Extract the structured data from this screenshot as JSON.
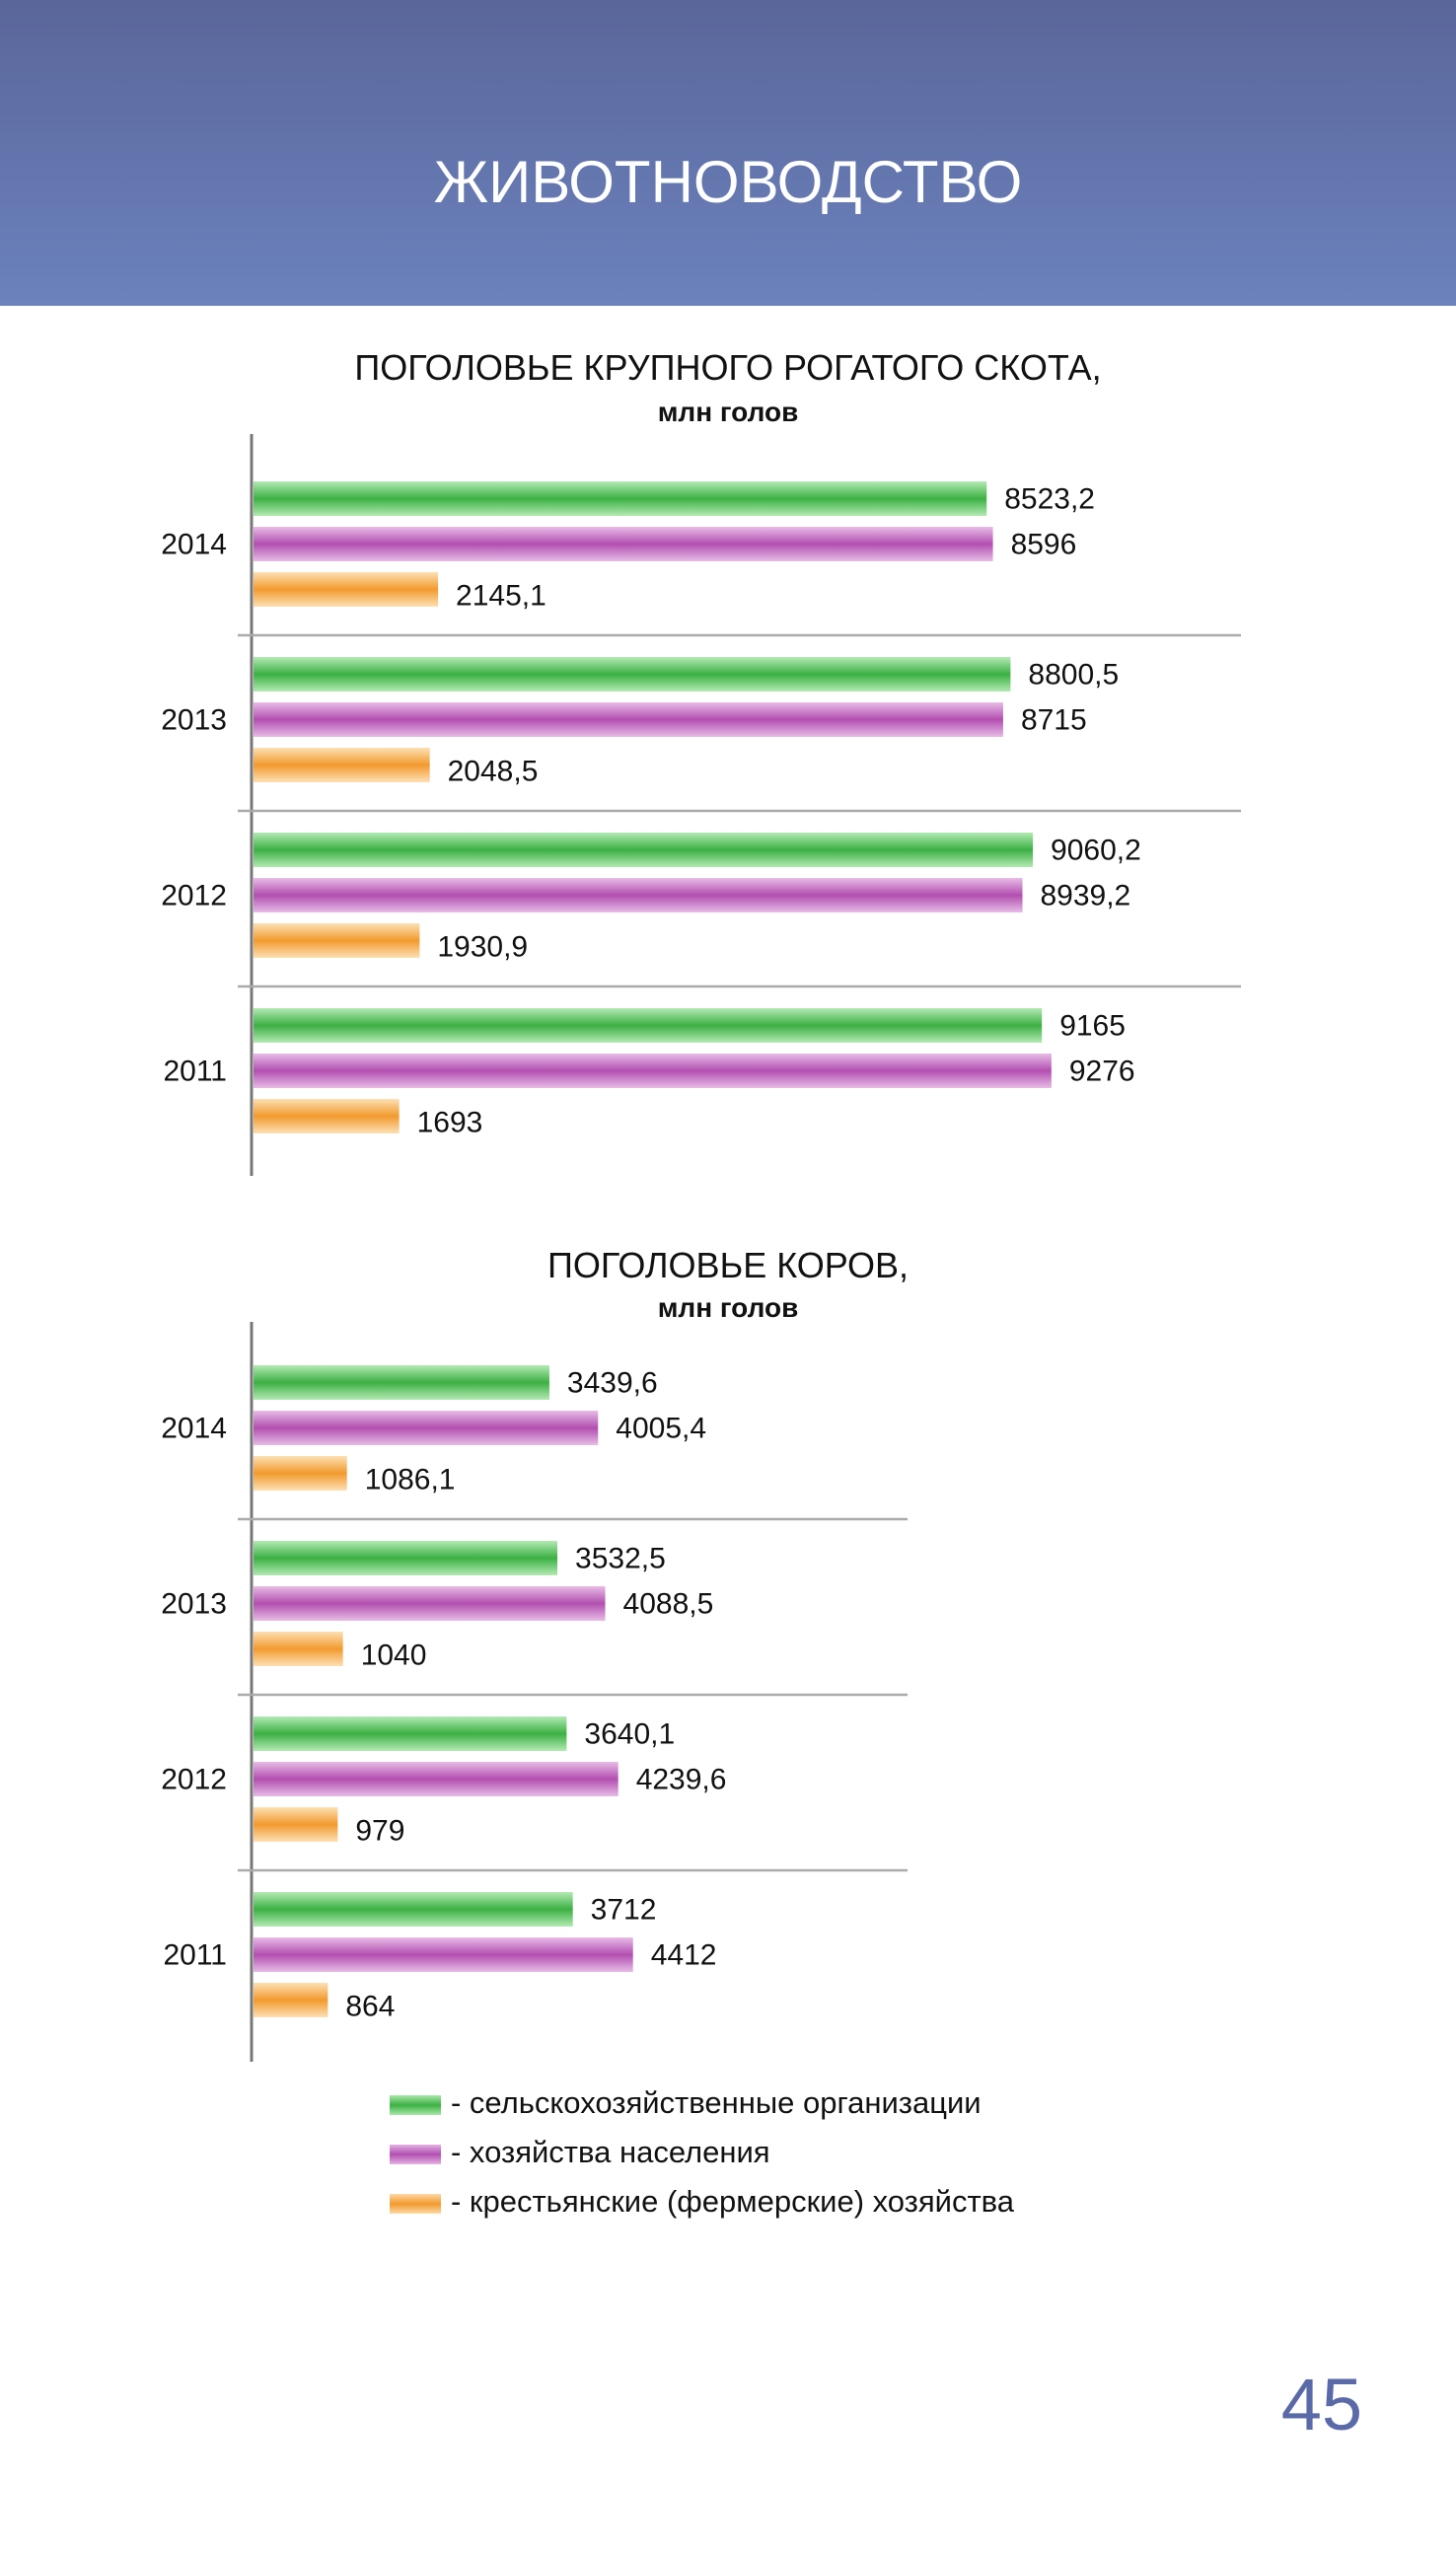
{
  "header": {
    "title": "ЖИВОТНОВОДСТВО"
  },
  "colors": {
    "agri_orgs": "#3cb043",
    "households": "#b24fb0",
    "farms": "#f29a2e"
  },
  "chart_data": [
    {
      "type": "bar",
      "orientation": "horizontal",
      "title": "ПОГОЛОВЬЕ КРУПНОГО РОГАТОГО СКОТА,",
      "subtitle": "млн голов",
      "categories": [
        "2014",
        "2013",
        "2012",
        "2011"
      ],
      "series": [
        {
          "name": "- сельскохозяйственные организации",
          "values": [
            8523.2,
            8800.5,
            9060.2,
            9165
          ],
          "labels": [
            "8523,2",
            "8800,5",
            "9060,2",
            "9165"
          ]
        },
        {
          "name": "- хозяйства населения",
          "values": [
            8596,
            8715,
            8939.2,
            9276
          ],
          "labels": [
            "8596",
            "8715",
            "8939,2",
            "9276"
          ]
        },
        {
          "name": "- крестьянские (фермерские) хозяйства",
          "values": [
            2145.1,
            2048.5,
            1930.9,
            1693
          ],
          "labels": [
            "2145,1",
            "2048,5",
            "1930,9",
            "1693"
          ]
        }
      ],
      "xlim": [
        0,
        10000
      ]
    },
    {
      "type": "bar",
      "orientation": "horizontal",
      "title": "ПОГОЛОВЬЕ КОРОВ,",
      "subtitle": "млн голов",
      "categories": [
        "2014",
        "2013",
        "2012",
        "2011"
      ],
      "series": [
        {
          "name": "- сельскохозяйственные организации",
          "values": [
            3439.6,
            3532.5,
            3640.1,
            3712
          ],
          "labels": [
            "3439,6",
            "3532,5",
            "3640,1",
            "3712"
          ]
        },
        {
          "name": "- хозяйства населения",
          "values": [
            4005.4,
            4088.5,
            4239.6,
            4412
          ],
          "labels": [
            "4005,4",
            "4088,5",
            "4239,6",
            "4412"
          ]
        },
        {
          "name": "- крестьянские (фермерские) хозяйства",
          "values": [
            1086.1,
            1040,
            979,
            864
          ],
          "labels": [
            "1086,1",
            "1040",
            "979",
            "864"
          ]
        }
      ],
      "xlim": [
        0,
        10000
      ]
    }
  ],
  "legend": [
    {
      "label": "- сельскохозяйственные организации",
      "color_key": "agri_orgs"
    },
    {
      "label": "- хозяйства населения",
      "color_key": "households"
    },
    {
      "label": "- крестьянские (фермерские) хозяйства",
      "color_key": "farms"
    }
  ],
  "page_number": "45"
}
